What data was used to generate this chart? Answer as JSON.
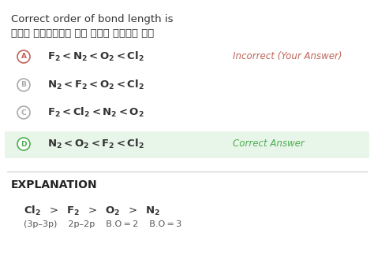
{
  "bg_color": "#ffffff",
  "title_en": "Correct order of bond length is",
  "title_hi": "बंध लम्बाई का सही क्रम है",
  "options": [
    {
      "label": "A",
      "text": "$\\mathbf{F_2 < N_2 < O_2 < Cl_2}$",
      "note": "Incorrect (Your Answer)",
      "note_color": "#c0645a",
      "circle_color": "#c0645a",
      "selected": true
    },
    {
      "label": "B",
      "text": "$\\mathbf{N_2 < F_2 < O_2 < Cl_2}$",
      "note": "",
      "note_color": "",
      "circle_color": "#aaaaaa",
      "selected": false
    },
    {
      "label": "C",
      "text": "$\\mathbf{F_2 < Cl_2 < N_2 < O_2}$",
      "note": "",
      "note_color": "",
      "circle_color": "#aaaaaa",
      "selected": false
    },
    {
      "label": "D",
      "text": "$\\mathbf{N_2 < O_2 < F_2 < Cl_2}$",
      "note": "Correct Answer",
      "note_color": "#4caf50",
      "circle_color": "#4caf50",
      "selected": true,
      "highlight": true
    }
  ],
  "explanation_title": "EXPLANATION",
  "explanation_line1": "$\\mathbf{Cl_2}$  $>$  $\\mathbf{F_2}$  $>$  $\\mathbf{O_2}$  $>$  $\\mathbf{N_2}$",
  "explanation_line2": "(3p–3p)    2p–2p    B.O = 2    B.O = 3",
  "highlight_bg": "#e8f5e9"
}
